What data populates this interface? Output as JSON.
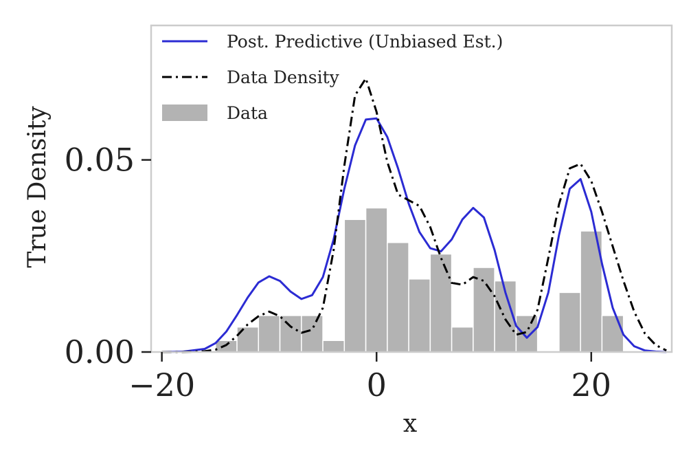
{
  "chart_data": {
    "type": "histogram-with-density-lines",
    "xlabel": "x",
    "ylabel": "True Density",
    "xlim": [
      -21,
      27.5
    ],
    "ylim": [
      0,
      0.085
    ],
    "xticks": [
      -20,
      0,
      20
    ],
    "xtick_labels": [
      "−20",
      "0",
      "20"
    ],
    "yticks": [
      0.0,
      0.05
    ],
    "ytick_labels": [
      "0.00",
      "0.05"
    ],
    "grid": false,
    "legend": {
      "placement": "top-left",
      "entries": [
        {
          "label": "Post. Predictive (Unbiased Est.)",
          "style": "solid",
          "color": "#2b2bd3"
        },
        {
          "label": "Data Density",
          "style": "dashdot",
          "color": "#000000"
        },
        {
          "label": "Data",
          "style": "patch",
          "color": "#b3b3b3"
        }
      ]
    },
    "histogram": {
      "name": "Data",
      "color": "#b3b3b3",
      "bin_edges": [
        -15,
        -13,
        -11,
        -9,
        -7,
        -5,
        -3,
        -1,
        1,
        3,
        5,
        7,
        9,
        11,
        13,
        15,
        17,
        19,
        21,
        23
      ],
      "values": [
        0.003,
        0.0065,
        0.0095,
        0.0095,
        0.0095,
        0.003,
        0.0345,
        0.0375,
        0.0285,
        0.019,
        0.0255,
        0.0065,
        0.022,
        0.0185,
        0.0095,
        0.0,
        0.0155,
        0.0315,
        0.0095
      ]
    },
    "series": [
      {
        "name": "Post. Predictive (Unbiased Est.)",
        "style": "solid",
        "color": "#2b2bd3",
        "x": [
          -20,
          -18,
          -16,
          -15,
          -14,
          -13,
          -12,
          -11,
          -10,
          -9,
          -8,
          -7,
          -6,
          -5,
          -4,
          -3,
          -2,
          -1,
          0,
          1,
          2,
          3,
          4,
          5,
          6,
          7,
          8,
          9,
          10,
          11,
          12,
          13,
          14,
          15,
          16,
          17,
          18,
          19,
          20,
          21,
          22,
          23,
          24,
          25,
          26,
          27
        ],
        "y": [
          0.0,
          0.0001,
          0.0008,
          0.0023,
          0.0053,
          0.0096,
          0.0142,
          0.0181,
          0.0197,
          0.0185,
          0.0157,
          0.0138,
          0.0148,
          0.0195,
          0.0293,
          0.0425,
          0.0538,
          0.0605,
          0.0608,
          0.056,
          0.0478,
          0.0386,
          0.0312,
          0.027,
          0.0262,
          0.0293,
          0.0345,
          0.0375,
          0.035,
          0.0265,
          0.0155,
          0.0068,
          0.0037,
          0.0065,
          0.0155,
          0.0305,
          0.0425,
          0.045,
          0.0365,
          0.023,
          0.0115,
          0.0045,
          0.0015,
          0.0004,
          0.0001,
          0.0
        ]
      },
      {
        "name": "Data Density",
        "style": "dashdot",
        "color": "#000000",
        "x": [
          -20,
          -18,
          -16,
          -15,
          -14,
          -13,
          -12,
          -11,
          -10,
          -9,
          -8,
          -7,
          -6,
          -5,
          -4,
          -3,
          -2,
          -1,
          0,
          1,
          2,
          3,
          4,
          5,
          6,
          7,
          8,
          9,
          10,
          11,
          12,
          13,
          14,
          15,
          16,
          17,
          18,
          19,
          20,
          21,
          22,
          23,
          24,
          25,
          26,
          27
        ],
        "y": [
          0.0,
          0.0,
          0.0002,
          0.0006,
          0.0018,
          0.0042,
          0.0072,
          0.0093,
          0.0105,
          0.0093,
          0.0066,
          0.005,
          0.0058,
          0.0115,
          0.0265,
          0.0485,
          0.0668,
          0.0712,
          0.0625,
          0.0495,
          0.041,
          0.0395,
          0.038,
          0.0325,
          0.0245,
          0.018,
          0.0175,
          0.0195,
          0.0185,
          0.0145,
          0.0085,
          0.0045,
          0.0052,
          0.011,
          0.0245,
          0.0385,
          0.0478,
          0.049,
          0.0445,
          0.0365,
          0.0275,
          0.0185,
          0.0105,
          0.0048,
          0.0018,
          0.0004
        ]
      }
    ]
  }
}
